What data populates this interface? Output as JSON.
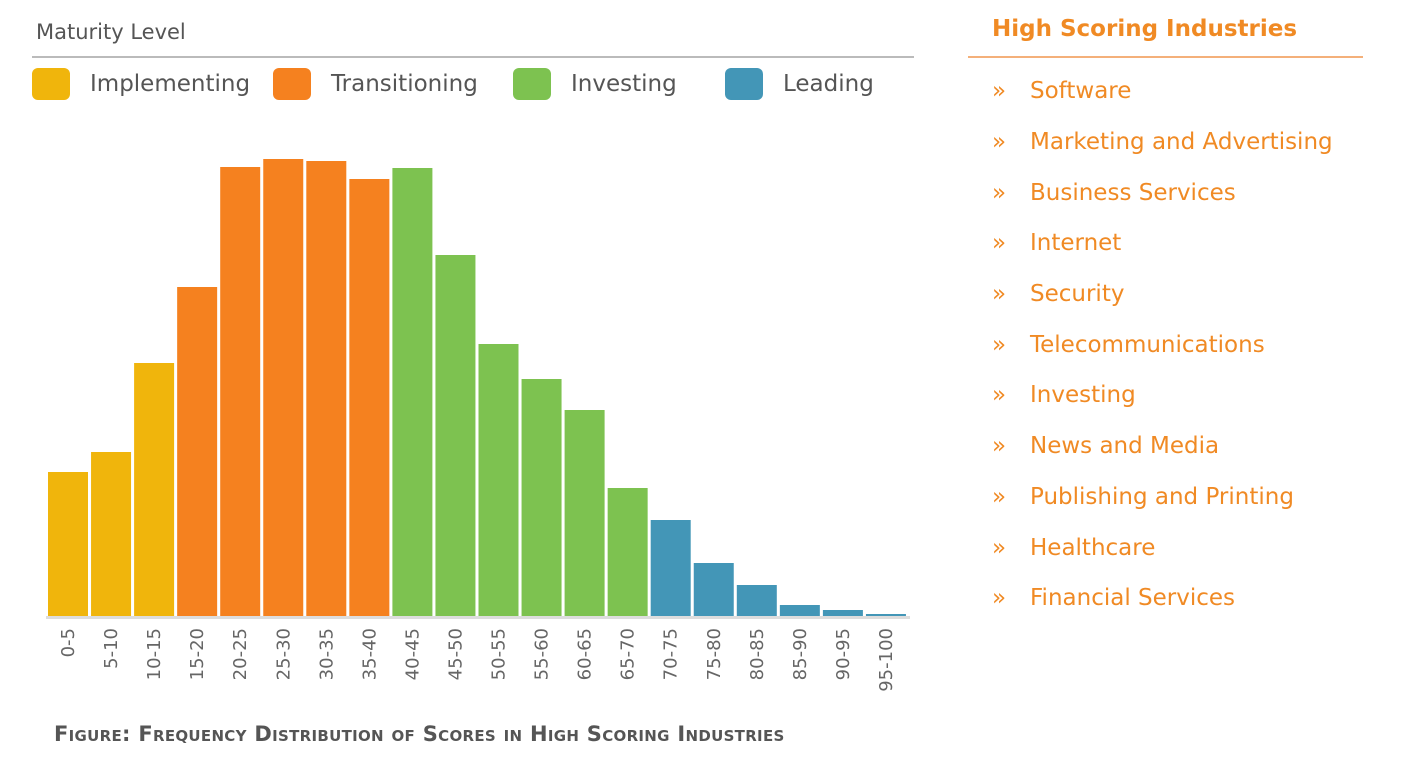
{
  "legend": {
    "title": "Maturity Level",
    "items": [
      {
        "label": "Implementing",
        "color": "#f0b50c"
      },
      {
        "label": "Transitioning",
        "color": "#f5811f"
      },
      {
        "label": "Investing",
        "color": "#7dc250"
      },
      {
        "label": "Leading",
        "color": "#4396b7"
      }
    ]
  },
  "caption": "Figure: Frequency Distribution of Scores in High Scoring Industries",
  "sidebar": {
    "title": "High Scoring Industries",
    "bullet": "»",
    "items": [
      "Software",
      "Marketing and Advertising",
      "Business Services",
      "Internet",
      "Security",
      "Telecommunications",
      "Investing",
      "News and Media",
      "Publishing and Printing",
      "Healthcare",
      "Financial Services"
    ]
  },
  "chart_data": {
    "type": "bar",
    "title": "Figure: Frequency Distribution of Scores in High Scoring Industries",
    "xlabel": "",
    "ylabel": "",
    "grid": false,
    "legend_position": "top",
    "categories": [
      "0-5",
      "5-10",
      "10-15",
      "15-20",
      "20-25",
      "25-30",
      "30-35",
      "35-40",
      "40-45",
      "45-50",
      "50-55",
      "55-60",
      "60-65",
      "65-70",
      "70-75",
      "75-80",
      "80-85",
      "85-90",
      "90-95",
      "95-100"
    ],
    "values": [
      144,
      164,
      253,
      329,
      449,
      457,
      455,
      437,
      448,
      361,
      272,
      237,
      206,
      128,
      96,
      53,
      31,
      11,
      6,
      2
    ],
    "levels": [
      "Implementing",
      "Implementing",
      "Implementing",
      "Transitioning",
      "Transitioning",
      "Transitioning",
      "Transitioning",
      "Transitioning",
      "Investing",
      "Investing",
      "Investing",
      "Investing",
      "Investing",
      "Investing",
      "Leading",
      "Leading",
      "Leading",
      "Leading",
      "Leading",
      "Leading"
    ]
  }
}
